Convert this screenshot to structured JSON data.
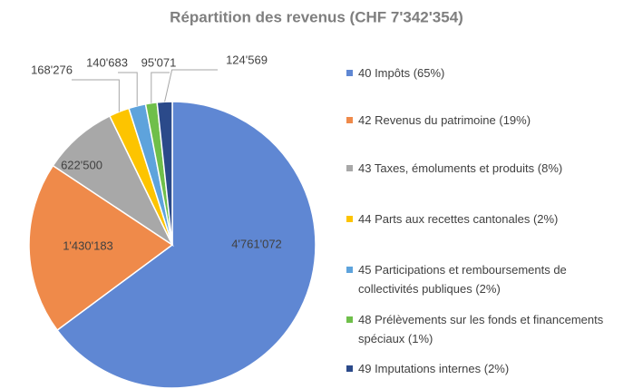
{
  "chart_data": {
    "type": "pie",
    "title": "Répartition des revenus  (CHF 7'342'354)",
    "categories": [
      "40 Impôts (65%)",
      "42 Revenus du patrimoine (19%)",
      "43 Taxes, émoluments et produits (8%)",
      "44 Parts aux recettes cantonales (2%)",
      "45 Participations et remboursements de collectivités publiques (2%)",
      "48 Prélèvements sur les fonds et financements spéciaux  (1%)",
      "49 Imputations internes (2%)"
    ],
    "values": [
      4761072,
      1430183,
      622500,
      168276,
      140683,
      95071,
      124569
    ],
    "value_labels": [
      "4'761'072",
      "1'430'183",
      "622'500",
      "168'276",
      "140'683",
      "95'071",
      "124'569"
    ],
    "colors": [
      "#5f87d3",
      "#ef8a4a",
      "#a8a8a8",
      "#fdc400",
      "#5ea3dc",
      "#6fbf4a",
      "#2b4a8a"
    ],
    "legend": "right"
  }
}
